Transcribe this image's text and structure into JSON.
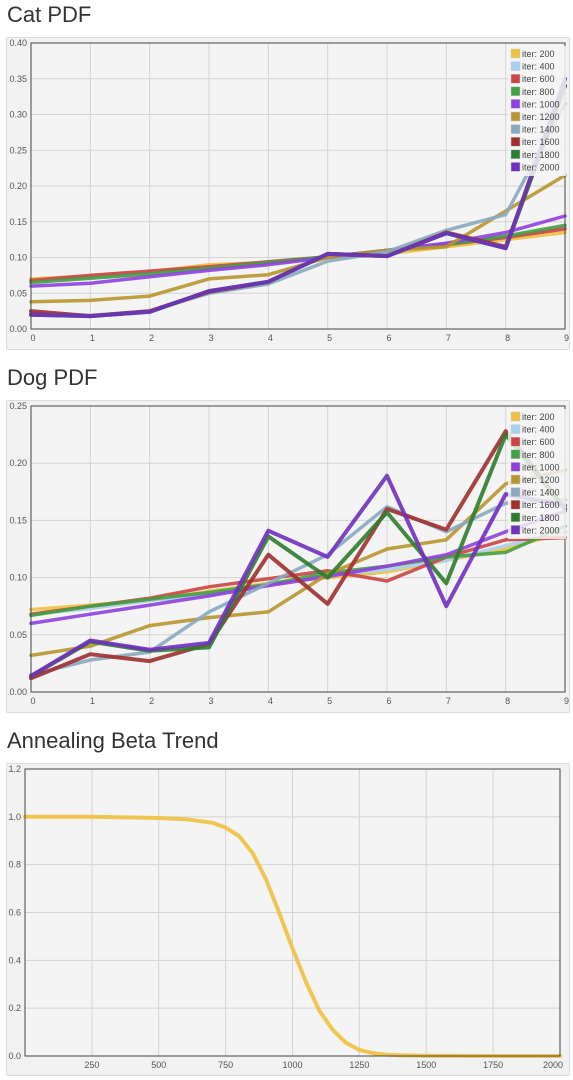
{
  "sections": [
    {
      "title": "Cat PDF"
    },
    {
      "title": "Dog PDF"
    },
    {
      "title": "Annealing Beta Trend"
    }
  ],
  "chart_data": [
    {
      "type": "line",
      "title": "Cat PDF",
      "x": [
        0,
        1,
        2,
        3,
        4,
        5,
        6,
        7,
        8,
        9
      ],
      "xlim": [
        0,
        9
      ],
      "ylim": [
        0,
        0.4
      ],
      "xticks": [
        "0",
        "1",
        "2",
        "3",
        "4",
        "5",
        "6",
        "7",
        "8",
        "9"
      ],
      "yticks": [
        "0.00",
        "0.05",
        "0.10",
        "0.15",
        "0.20",
        "0.25",
        "0.30",
        "0.35",
        "0.40"
      ],
      "grid": true,
      "legend_position": "top-right",
      "series": [
        {
          "name": "iter: 200",
          "color": "#f0c040",
          "values": [
            0.07,
            0.074,
            0.08,
            0.09,
            0.093,
            0.1,
            0.105,
            0.115,
            0.125,
            0.135
          ]
        },
        {
          "name": "iter: 400",
          "color": "#a8d0f0",
          "values": [
            0.068,
            0.072,
            0.079,
            0.085,
            0.093,
            0.101,
            0.11,
            0.12,
            0.128,
            0.142
          ]
        },
        {
          "name": "iter: 600",
          "color": "#cc4444",
          "values": [
            0.068,
            0.075,
            0.081,
            0.087,
            0.094,
            0.101,
            0.11,
            0.118,
            0.128,
            0.14
          ]
        },
        {
          "name": "iter: 800",
          "color": "#44a044",
          "values": [
            0.065,
            0.071,
            0.077,
            0.085,
            0.093,
            0.101,
            0.11,
            0.118,
            0.13,
            0.145
          ]
        },
        {
          "name": "iter: 1000",
          "color": "#9040e0",
          "values": [
            0.06,
            0.064,
            0.073,
            0.082,
            0.09,
            0.1,
            0.11,
            0.12,
            0.135,
            0.158
          ]
        },
        {
          "name": "iter: 1200",
          "color": "#b8962e",
          "values": [
            0.038,
            0.04,
            0.046,
            0.07,
            0.076,
            0.1,
            0.11,
            0.115,
            0.165,
            0.215
          ]
        },
        {
          "name": "iter: 1400",
          "color": "#8aa8c0",
          "values": [
            0.022,
            0.019,
            0.025,
            0.05,
            0.063,
            0.095,
            0.108,
            0.138,
            0.16,
            0.315
          ]
        },
        {
          "name": "iter: 1600",
          "color": "#a03030",
          "values": [
            0.025,
            0.018,
            0.025,
            0.052,
            0.066,
            0.105,
            0.102,
            0.135,
            0.115,
            0.34
          ]
        },
        {
          "name": "iter: 1800",
          "color": "#2e7d2e",
          "values": [
            0.02,
            0.018,
            0.024,
            0.053,
            0.066,
            0.105,
            0.102,
            0.134,
            0.113,
            0.34
          ]
        },
        {
          "name": "iter: 2000",
          "color": "#7030c0",
          "values": [
            0.02,
            0.018,
            0.024,
            0.053,
            0.066,
            0.105,
            0.102,
            0.134,
            0.113,
            0.35
          ]
        }
      ]
    },
    {
      "type": "line",
      "title": "Dog PDF",
      "x": [
        0,
        1,
        2,
        3,
        4,
        5,
        6,
        7,
        8,
        9
      ],
      "xlim": [
        0,
        9
      ],
      "ylim": [
        0,
        0.25
      ],
      "xticks": [
        "0",
        "1",
        "2",
        "3",
        "4",
        "5",
        "6",
        "7",
        "8",
        "9"
      ],
      "yticks": [
        "0.00",
        "0.05",
        "0.10",
        "0.15",
        "0.20",
        "0.25"
      ],
      "grid": true,
      "legend_position": "top-right",
      "series": [
        {
          "name": "iter: 200",
          "color": "#f0c040",
          "values": [
            0.072,
            0.076,
            0.08,
            0.088,
            0.095,
            0.1,
            0.105,
            0.115,
            0.125,
            0.14
          ]
        },
        {
          "name": "iter: 400",
          "color": "#a8d0f0",
          "values": [
            0.068,
            0.073,
            0.08,
            0.085,
            0.094,
            0.102,
            0.107,
            0.115,
            0.128,
            0.14
          ]
        },
        {
          "name": "iter: 600",
          "color": "#cc4444",
          "values": [
            0.068,
            0.075,
            0.082,
            0.092,
            0.099,
            0.106,
            0.097,
            0.118,
            0.133,
            0.135
          ]
        },
        {
          "name": "iter: 800",
          "color": "#44a044",
          "values": [
            0.067,
            0.075,
            0.081,
            0.087,
            0.094,
            0.104,
            0.11,
            0.118,
            0.122,
            0.145
          ]
        },
        {
          "name": "iter: 1000",
          "color": "#9040e0",
          "values": [
            0.06,
            0.068,
            0.076,
            0.084,
            0.093,
            0.101,
            0.11,
            0.12,
            0.14,
            0.158
          ]
        },
        {
          "name": "iter: 1200",
          "color": "#b8962e",
          "values": [
            0.032,
            0.04,
            0.058,
            0.065,
            0.07,
            0.103,
            0.125,
            0.133,
            0.182,
            0.194
          ]
        },
        {
          "name": "iter: 1400",
          "color": "#8aa8c0",
          "values": [
            0.015,
            0.028,
            0.035,
            0.07,
            0.095,
            0.12,
            0.162,
            0.14,
            0.165,
            0.168
          ]
        },
        {
          "name": "iter: 1600",
          "color": "#a03030",
          "values": [
            0.012,
            0.033,
            0.027,
            0.042,
            0.12,
            0.077,
            0.16,
            0.142,
            0.228,
            0.16
          ]
        },
        {
          "name": "iter: 1800",
          "color": "#2e7d2e",
          "values": [
            0.014,
            0.044,
            0.036,
            0.039,
            0.136,
            0.1,
            0.157,
            0.095,
            0.225,
            0.16
          ]
        },
        {
          "name": "iter: 2000",
          "color": "#7030c0",
          "values": [
            0.014,
            0.045,
            0.037,
            0.043,
            0.141,
            0.118,
            0.189,
            0.075,
            0.173,
            0.163
          ]
        }
      ]
    },
    {
      "type": "line",
      "title": "Annealing Beta Trend",
      "xlim": [
        0,
        2000
      ],
      "ylim": [
        0,
        1.2
      ],
      "xticks": [
        "250",
        "500",
        "750",
        "1000",
        "1250",
        "1500",
        "1750",
        "2000"
      ],
      "yticks": [
        "0.0",
        "0.2",
        "0.4",
        "0.6",
        "0.8",
        "1.0",
        "1.2"
      ],
      "grid": true,
      "series": [
        {
          "color": "#f0c040",
          "x": [
            0,
            250,
            500,
            600,
            700,
            750,
            800,
            850,
            900,
            950,
            1000,
            1050,
            1100,
            1150,
            1200,
            1250,
            1300,
            1350,
            1400,
            1500,
            1750,
            2000
          ],
          "values": [
            1.0,
            1.0,
            0.995,
            0.99,
            0.975,
            0.955,
            0.92,
            0.85,
            0.74,
            0.6,
            0.45,
            0.31,
            0.19,
            0.11,
            0.055,
            0.025,
            0.012,
            0.006,
            0.003,
            0.001,
            0.0,
            0.0
          ]
        }
      ]
    }
  ]
}
